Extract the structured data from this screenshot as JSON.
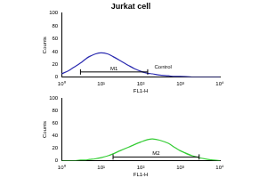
{
  "chart_data": [
    {
      "type": "line",
      "title": "Jurkat cell",
      "x_label": "FL1-H",
      "y_label": "Counts",
      "log": "x",
      "grid": false,
      "x": [
        1,
        1.5,
        2,
        3,
        4,
        5,
        7,
        10,
        15,
        20,
        30,
        50,
        70,
        100,
        150,
        200,
        300,
        500,
        700,
        1000,
        2000,
        5000,
        10000
      ],
      "series": [
        {
          "name": "Control",
          "color": "#2b2bb0",
          "values": [
            5,
            10,
            15,
            22,
            28,
            32,
            36,
            38,
            36,
            32,
            26,
            18,
            13,
            9,
            6,
            5,
            3,
            2,
            1,
            1,
            0,
            0,
            0
          ]
        }
      ],
      "xlim": [
        1,
        10000
      ],
      "xticks": [
        {
          "value": 1,
          "label": "10⁰"
        },
        {
          "value": 10,
          "label": "10¹"
        },
        {
          "value": 100,
          "label": "10²"
        },
        {
          "value": 1000,
          "label": "10³"
        },
        {
          "value": 10000,
          "label": "10⁴"
        }
      ],
      "ylim": [
        0,
        100
      ],
      "yticks": [
        0,
        20,
        40,
        60,
        80,
        100
      ],
      "gates": [
        {
          "label": "M1",
          "x0": 3,
          "x1": 150,
          "y": 8
        }
      ],
      "annotations": [
        {
          "text": "Control",
          "x": 200,
          "y": 16
        }
      ]
    },
    {
      "type": "line",
      "x_label": "FL1-H",
      "y_label": "Counts",
      "log": "x",
      "grid": false,
      "x": [
        1,
        1.5,
        2,
        3,
        4,
        5,
        7,
        10,
        15,
        20,
        30,
        50,
        70,
        100,
        150,
        200,
        300,
        500,
        700,
        1000,
        2000,
        5000,
        10000
      ],
      "series": [
        {
          "name": "Jurkat cell",
          "color": "#33cc33",
          "values": [
            0,
            0,
            0,
            1,
            1,
            2,
            3,
            5,
            8,
            11,
            16,
            22,
            26,
            30,
            34,
            35,
            33,
            28,
            22,
            16,
            8,
            2,
            0
          ]
        }
      ],
      "xlim": [
        1,
        10000
      ],
      "xticks": [
        {
          "value": 1,
          "label": "10⁰"
        },
        {
          "value": 10,
          "label": "10¹"
        },
        {
          "value": 100,
          "label": "10²"
        },
        {
          "value": 1000,
          "label": "10³"
        },
        {
          "value": 10000,
          "label": "10⁴"
        }
      ],
      "ylim": [
        0,
        100
      ],
      "yticks": [
        0,
        20,
        40,
        60,
        80,
        100
      ],
      "gates": [
        {
          "label": "M2",
          "x0": 20,
          "x1": 3000,
          "y": 6
        }
      ],
      "annotations": []
    }
  ]
}
